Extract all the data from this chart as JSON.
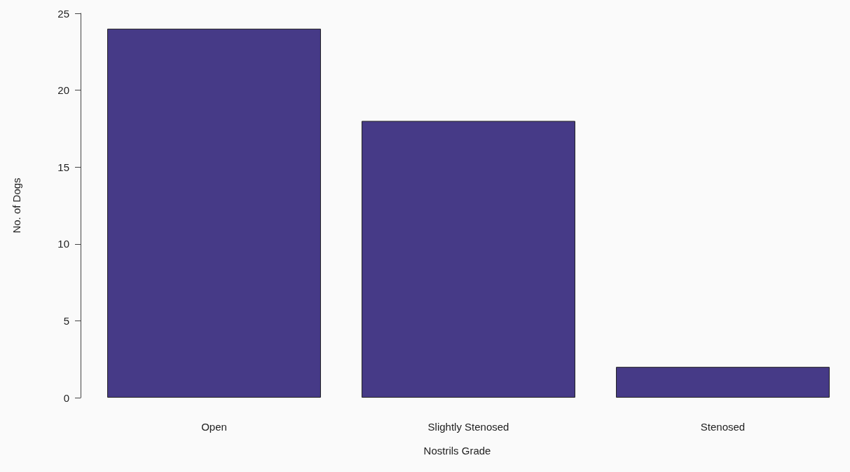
{
  "chart_data": {
    "type": "bar",
    "xlabel": "Nostrils Grade",
    "ylabel": "No. of Dogs",
    "categories": [
      "Open",
      "Slightly Stenosed",
      "Stenosed"
    ],
    "values": [
      24,
      18,
      2
    ],
    "color": "#463a87",
    "ylim": [
      0,
      25
    ],
    "yticks": [
      0,
      5,
      10,
      15,
      20,
      25
    ],
    "grid": false
  }
}
